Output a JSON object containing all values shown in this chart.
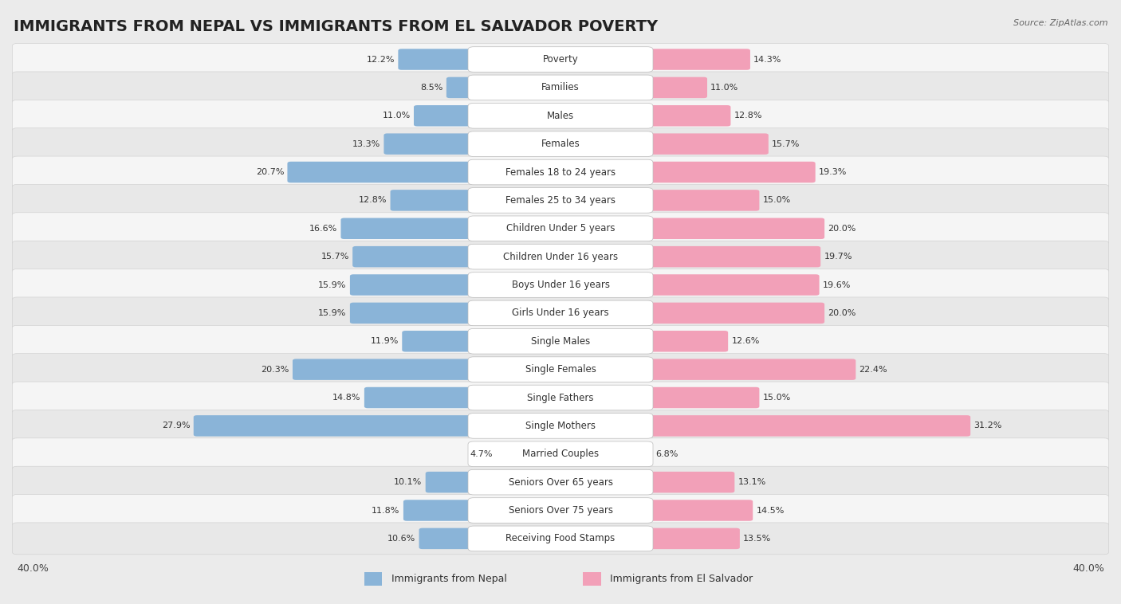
{
  "title": "IMMIGRANTS FROM NEPAL VS IMMIGRANTS FROM EL SALVADOR POVERTY",
  "source": "Source: ZipAtlas.com",
  "categories": [
    "Poverty",
    "Families",
    "Males",
    "Females",
    "Females 18 to 24 years",
    "Females 25 to 34 years",
    "Children Under 5 years",
    "Children Under 16 years",
    "Boys Under 16 years",
    "Girls Under 16 years",
    "Single Males",
    "Single Females",
    "Single Fathers",
    "Single Mothers",
    "Married Couples",
    "Seniors Over 65 years",
    "Seniors Over 75 years",
    "Receiving Food Stamps"
  ],
  "nepal_values": [
    12.2,
    8.5,
    11.0,
    13.3,
    20.7,
    12.8,
    16.6,
    15.7,
    15.9,
    15.9,
    11.9,
    20.3,
    14.8,
    27.9,
    4.7,
    10.1,
    11.8,
    10.6
  ],
  "elsalvador_values": [
    14.3,
    11.0,
    12.8,
    15.7,
    19.3,
    15.0,
    20.0,
    19.7,
    19.6,
    20.0,
    12.6,
    22.4,
    15.0,
    31.2,
    6.8,
    13.1,
    14.5,
    13.5
  ],
  "nepal_color": "#8ab4d8",
  "elsalvador_color": "#f2a0b8",
  "nepal_label": "Immigrants from Nepal",
  "elsalvador_label": "Immigrants from El Salvador",
  "axis_max": 40.0,
  "background_color": "#ebebeb",
  "row_bg_even": "#f5f5f5",
  "row_bg_odd": "#e8e8e8",
  "title_fontsize": 14,
  "label_fontsize": 8.5,
  "value_fontsize": 8
}
